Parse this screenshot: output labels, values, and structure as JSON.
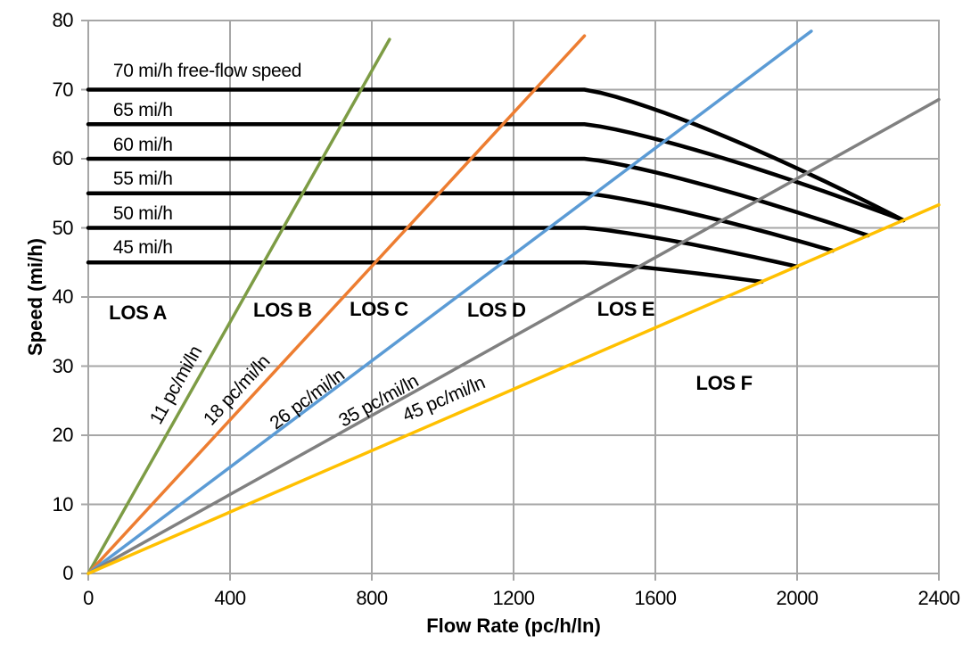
{
  "chart_data": {
    "type": "line",
    "title": "",
    "xlabel": "Flow Rate (pc/h/ln)",
    "ylabel": "Speed (mi/h)",
    "xlim": [
      0,
      2400
    ],
    "ylim": [
      0,
      80
    ],
    "x_ticks": [
      0,
      400,
      800,
      1200,
      1600,
      2000,
      2400
    ],
    "y_ticks": [
      0,
      10,
      20,
      30,
      40,
      50,
      60,
      70,
      80
    ],
    "grid": true,
    "colors": {
      "grid": "#A6A6A6",
      "axis_text": "#000000",
      "curve": "#000000"
    },
    "speed_flow_curves": [
      {
        "label": "70 mi/h free-flow speed",
        "ffs": 70,
        "breakpoint_flow": 1400,
        "capacity_flow": 2300,
        "speed_at_capacity": 51.1,
        "color": "#000000",
        "label_pos": {
          "flow": 70,
          "speed": 72.6
        }
      },
      {
        "label": "65 mi/h",
        "ffs": 65,
        "breakpoint_flow": 1400,
        "capacity_flow": 2300,
        "speed_at_capacity": 51.1,
        "color": "#000000",
        "label_pos": {
          "flow": 70,
          "speed": 67.0
        }
      },
      {
        "label": "60 mi/h",
        "ffs": 60,
        "breakpoint_flow": 1400,
        "capacity_flow": 2200,
        "speed_at_capacity": 48.9,
        "color": "#000000",
        "label_pos": {
          "flow": 70,
          "speed": 61.9
        }
      },
      {
        "label": "55 mi/h",
        "ffs": 55,
        "breakpoint_flow": 1400,
        "capacity_flow": 2100,
        "speed_at_capacity": 46.7,
        "color": "#000000",
        "label_pos": {
          "flow": 70,
          "speed": 57.0
        }
      },
      {
        "label": "50 mi/h",
        "ffs": 50,
        "breakpoint_flow": 1400,
        "capacity_flow": 2000,
        "speed_at_capacity": 44.4,
        "color": "#000000",
        "label_pos": {
          "flow": 70,
          "speed": 52.0
        }
      },
      {
        "label": "45 mi/h",
        "ffs": 45,
        "breakpoint_flow": 1400,
        "capacity_flow": 1900,
        "speed_at_capacity": 42.2,
        "color": "#000000",
        "label_pos": {
          "flow": 70,
          "speed": 47.1
        }
      }
    ],
    "density_lines": [
      {
        "label": "11 pc/mi/ln",
        "density": 11,
        "max_flow": 850,
        "color": "#7D9C45",
        "label_pos": {
          "flow": 249,
          "speed": 27.2
        }
      },
      {
        "label": "18 pc/mi/ln",
        "density": 18,
        "max_flow": 1400,
        "color": "#ED7D31",
        "label_pos": {
          "flow": 420,
          "speed": 26.5
        }
      },
      {
        "label": "26 pc/mi/ln",
        "density": 26,
        "max_flow": 2040,
        "color": "#5B9BD5",
        "label_pos": {
          "flow": 619,
          "speed": 25.2
        }
      },
      {
        "label": "35 pc/mi/ln",
        "density": 35,
        "max_flow": 2400,
        "color": "#808080",
        "label_pos": {
          "flow": 820,
          "speed": 24.9
        }
      },
      {
        "label": "45 pc/mi/ln",
        "density": 45,
        "max_flow": 2400,
        "color": "#FFC000",
        "label_pos": {
          "flow": 1004,
          "speed": 25.2
        }
      }
    ],
    "los_labels": [
      {
        "label": "LOS A",
        "flow": 140,
        "speed": 37.7
      },
      {
        "label": "LOS B",
        "flow": 548,
        "speed": 38.1
      },
      {
        "label": "LOS C",
        "flow": 820,
        "speed": 38.2
      },
      {
        "label": "LOS D",
        "flow": 1152,
        "speed": 38.1
      },
      {
        "label": "LOS E",
        "flow": 1517,
        "speed": 38.2
      },
      {
        "label": "LOS F",
        "flow": 1794,
        "speed": 27.5
      }
    ]
  }
}
